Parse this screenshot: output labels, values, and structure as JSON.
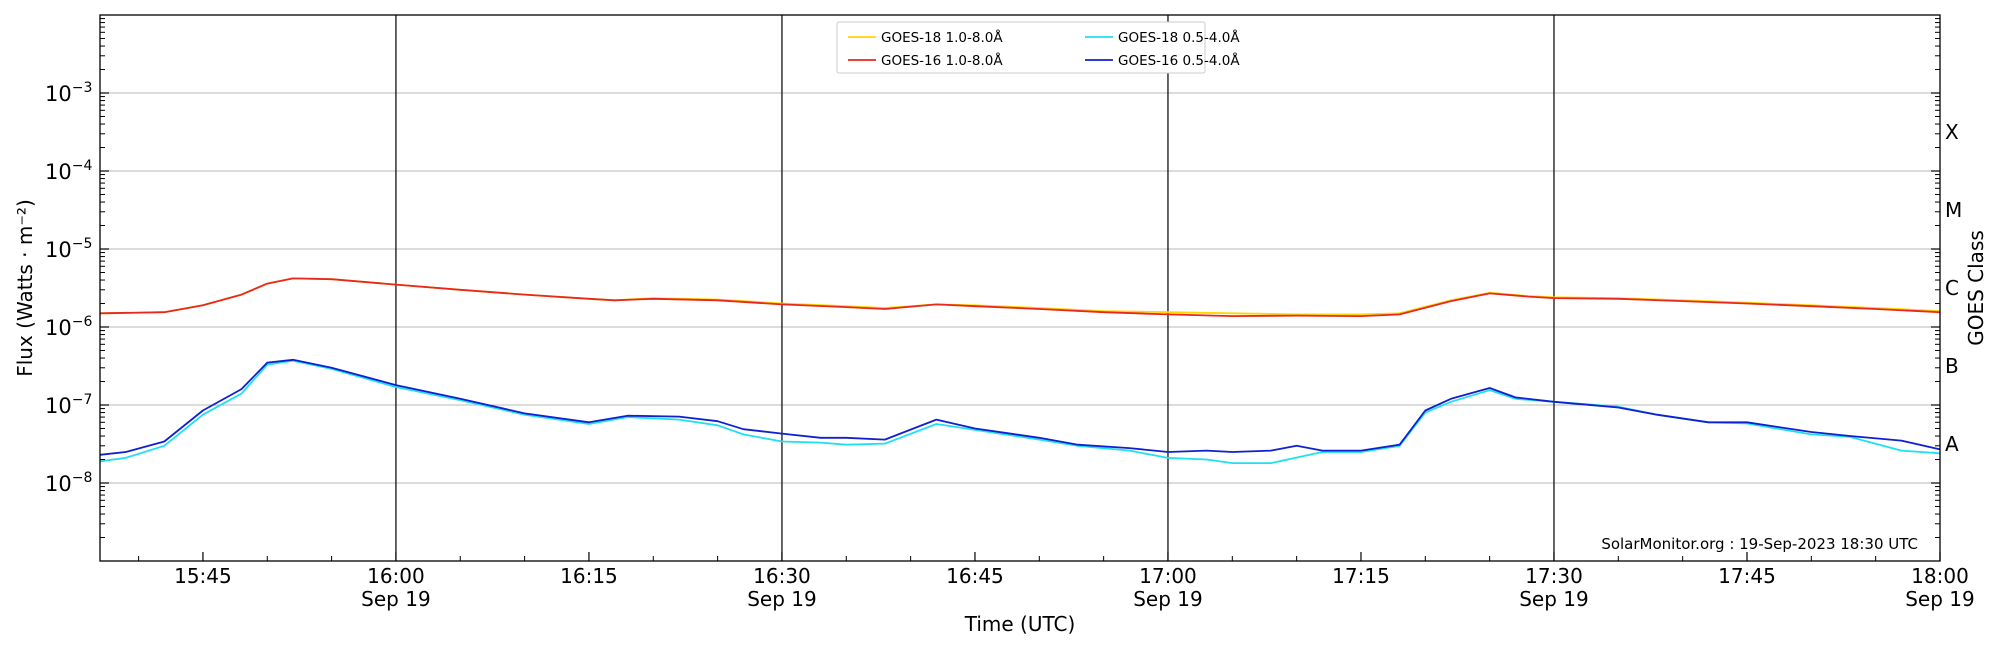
{
  "chart_data": {
    "type": "line",
    "title": "",
    "xlabel": "Time (UTC)",
    "ylabel": "Flux (Watts · m⁻²)",
    "right_label": "GOES Class",
    "annotation": "SolarMonitor.org : 19-Sep-2023 18:30 UTC",
    "x_range_minutes": [
      "15:37",
      "18:00"
    ],
    "y_scale": "log",
    "ylim": [
      1e-09,
      0.01
    ],
    "grid": "horizontal at decades",
    "legend_position": "top-center",
    "x_ticks": [
      {
        "t": "15:45",
        "label": "15:45",
        "sub": ""
      },
      {
        "t": "16:00",
        "label": "16:00",
        "sub": "Sep 19"
      },
      {
        "t": "16:15",
        "label": "16:15",
        "sub": ""
      },
      {
        "t": "16:30",
        "label": "16:30",
        "sub": "Sep 19"
      },
      {
        "t": "16:45",
        "label": "16:45",
        "sub": ""
      },
      {
        "t": "17:00",
        "label": "17:00",
        "sub": "Sep 19"
      },
      {
        "t": "17:15",
        "label": "17:15",
        "sub": ""
      },
      {
        "t": "17:30",
        "label": "17:30",
        "sub": "Sep 19"
      },
      {
        "t": "17:45",
        "label": "17:45",
        "sub": ""
      },
      {
        "t": "18:00",
        "label": "18:00",
        "sub": "Sep 19"
      }
    ],
    "vlines": [
      "16:00",
      "16:30",
      "17:00",
      "17:30"
    ],
    "y_ticks": [
      {
        "exp": -8,
        "label": "10",
        "sup": "−8"
      },
      {
        "exp": -7,
        "label": "10",
        "sup": "−7"
      },
      {
        "exp": -6,
        "label": "10",
        "sup": "−6"
      },
      {
        "exp": -5,
        "label": "10",
        "sup": "−5"
      },
      {
        "exp": -4,
        "label": "10",
        "sup": "−4"
      },
      {
        "exp": -3,
        "label": "10",
        "sup": "−3"
      }
    ],
    "goes_classes": [
      {
        "label": "A",
        "exp": -7.5
      },
      {
        "label": "B",
        "exp": -6.5
      },
      {
        "label": "C",
        "exp": -5.5
      },
      {
        "label": "M",
        "exp": -4.5
      },
      {
        "label": "X",
        "exp": -3.5
      }
    ],
    "series": [
      {
        "name": "GOES-18 1.0-8.0Å",
        "color": "#ffd700",
        "points": [
          [
            "15:37",
            1.5e-06
          ],
          [
            "15:42",
            1.55e-06
          ],
          [
            "15:45",
            1.9e-06
          ],
          [
            "15:48",
            2.6e-06
          ],
          [
            "15:50",
            3.6e-06
          ],
          [
            "15:52",
            4.2e-06
          ],
          [
            "15:55",
            4.1e-06
          ],
          [
            "16:00",
            3.5e-06
          ],
          [
            "16:05",
            3e-06
          ],
          [
            "16:10",
            2.6e-06
          ],
          [
            "16:15",
            2.3e-06
          ],
          [
            "16:17",
            2.2e-06
          ],
          [
            "16:20",
            2.35e-06
          ],
          [
            "16:25",
            2.25e-06
          ],
          [
            "16:30",
            2e-06
          ],
          [
            "16:35",
            1.85e-06
          ],
          [
            "16:38",
            1.75e-06
          ],
          [
            "16:42",
            1.95e-06
          ],
          [
            "16:45",
            1.9e-06
          ],
          [
            "16:50",
            1.75e-06
          ],
          [
            "16:55",
            1.6e-06
          ],
          [
            "17:00",
            1.55e-06
          ],
          [
            "17:05",
            1.5e-06
          ],
          [
            "17:10",
            1.45e-06
          ],
          [
            "17:15",
            1.45e-06
          ],
          [
            "17:18",
            1.5e-06
          ],
          [
            "17:22",
            2.2e-06
          ],
          [
            "17:25",
            2.75e-06
          ],
          [
            "17:28",
            2.5e-06
          ],
          [
            "17:30",
            2.4e-06
          ],
          [
            "17:35",
            2.35e-06
          ],
          [
            "17:40",
            2.2e-06
          ],
          [
            "17:45",
            2.05e-06
          ],
          [
            "17:50",
            1.9e-06
          ],
          [
            "17:55",
            1.75e-06
          ],
          [
            "18:00",
            1.6e-06
          ]
        ]
      },
      {
        "name": "GOES-16 1.0-8.0Å",
        "color": "#e8281c",
        "points": [
          [
            "15:37",
            1.5e-06
          ],
          [
            "15:42",
            1.55e-06
          ],
          [
            "15:45",
            1.9e-06
          ],
          [
            "15:48",
            2.6e-06
          ],
          [
            "15:50",
            3.6e-06
          ],
          [
            "15:52",
            4.2e-06
          ],
          [
            "15:55",
            4.1e-06
          ],
          [
            "16:00",
            3.5e-06
          ],
          [
            "16:05",
            3e-06
          ],
          [
            "16:10",
            2.6e-06
          ],
          [
            "16:15",
            2.3e-06
          ],
          [
            "16:17",
            2.2e-06
          ],
          [
            "16:20",
            2.3e-06
          ],
          [
            "16:25",
            2.2e-06
          ],
          [
            "16:30",
            1.95e-06
          ],
          [
            "16:35",
            1.8e-06
          ],
          [
            "16:38",
            1.7e-06
          ],
          [
            "16:42",
            1.95e-06
          ],
          [
            "16:45",
            1.85e-06
          ],
          [
            "16:50",
            1.7e-06
          ],
          [
            "16:55",
            1.55e-06
          ],
          [
            "17:00",
            1.45e-06
          ],
          [
            "17:05",
            1.38e-06
          ],
          [
            "17:10",
            1.4e-06
          ],
          [
            "17:15",
            1.38e-06
          ],
          [
            "17:18",
            1.45e-06
          ],
          [
            "17:22",
            2.15e-06
          ],
          [
            "17:25",
            2.7e-06
          ],
          [
            "17:28",
            2.45e-06
          ],
          [
            "17:30",
            2.35e-06
          ],
          [
            "17:35",
            2.3e-06
          ],
          [
            "17:40",
            2.15e-06
          ],
          [
            "17:45",
            2e-06
          ],
          [
            "17:50",
            1.85e-06
          ],
          [
            "17:55",
            1.7e-06
          ],
          [
            "18:00",
            1.55e-06
          ]
        ]
      },
      {
        "name": "GOES-18 0.5-4.0Å",
        "color": "#1fe0f0",
        "points": [
          [
            "15:37",
            1.9e-08
          ],
          [
            "15:39",
            2.1e-08
          ],
          [
            "15:42",
            3e-08
          ],
          [
            "15:45",
            7.5e-08
          ],
          [
            "15:48",
            1.4e-07
          ],
          [
            "15:50",
            3.3e-07
          ],
          [
            "15:52",
            3.7e-07
          ],
          [
            "15:55",
            2.9e-07
          ],
          [
            "16:00",
            1.7e-07
          ],
          [
            "16:05",
            1.15e-07
          ],
          [
            "16:10",
            7.5e-08
          ],
          [
            "16:15",
            5.7e-08
          ],
          [
            "16:18",
            7e-08
          ],
          [
            "16:22",
            6.5e-08
          ],
          [
            "16:25",
            5.5e-08
          ],
          [
            "16:27",
            4.2e-08
          ],
          [
            "16:30",
            3.4e-08
          ],
          [
            "16:33",
            3.3e-08
          ],
          [
            "16:35",
            3.1e-08
          ],
          [
            "16:38",
            3.2e-08
          ],
          [
            "16:42",
            5.7e-08
          ],
          [
            "16:45",
            4.8e-08
          ],
          [
            "16:50",
            3.6e-08
          ],
          [
            "16:53",
            3e-08
          ],
          [
            "16:57",
            2.6e-08
          ],
          [
            "17:00",
            2.1e-08
          ],
          [
            "17:03",
            2e-08
          ],
          [
            "17:05",
            1.8e-08
          ],
          [
            "17:08",
            1.8e-08
          ],
          [
            "17:12",
            2.5e-08
          ],
          [
            "17:15",
            2.5e-08
          ],
          [
            "17:18",
            3e-08
          ],
          [
            "17:20",
            8e-08
          ],
          [
            "17:22",
            1.1e-07
          ],
          [
            "17:25",
            1.55e-07
          ],
          [
            "17:27",
            1.2e-07
          ],
          [
            "17:30",
            1.1e-07
          ],
          [
            "17:35",
            9.5e-08
          ],
          [
            "17:38",
            7.5e-08
          ],
          [
            "17:42",
            6e-08
          ],
          [
            "17:45",
            5.8e-08
          ],
          [
            "17:50",
            4.2e-08
          ],
          [
            "17:53",
            3.9e-08
          ],
          [
            "17:57",
            2.6e-08
          ],
          [
            "18:00",
            2.4e-08
          ]
        ]
      },
      {
        "name": "GOES-16 0.5-4.0Å",
        "color": "#1020d0",
        "points": [
          [
            "15:37",
            2.3e-08
          ],
          [
            "15:39",
            2.5e-08
          ],
          [
            "15:42",
            3.4e-08
          ],
          [
            "15:45",
            8.5e-08
          ],
          [
            "15:48",
            1.6e-07
          ],
          [
            "15:50",
            3.5e-07
          ],
          [
            "15:52",
            3.8e-07
          ],
          [
            "15:55",
            3e-07
          ],
          [
            "16:00",
            1.8e-07
          ],
          [
            "16:05",
            1.2e-07
          ],
          [
            "16:10",
            7.8e-08
          ],
          [
            "16:15",
            6e-08
          ],
          [
            "16:18",
            7.3e-08
          ],
          [
            "16:22",
            7.1e-08
          ],
          [
            "16:25",
            6.2e-08
          ],
          [
            "16:27",
            4.9e-08
          ],
          [
            "16:30",
            4.3e-08
          ],
          [
            "16:33",
            3.8e-08
          ],
          [
            "16:35",
            3.8e-08
          ],
          [
            "16:38",
            3.6e-08
          ],
          [
            "16:42",
            6.5e-08
          ],
          [
            "16:45",
            5e-08
          ],
          [
            "16:50",
            3.8e-08
          ],
          [
            "16:53",
            3.1e-08
          ],
          [
            "16:57",
            2.8e-08
          ],
          [
            "17:00",
            2.5e-08
          ],
          [
            "17:03",
            2.6e-08
          ],
          [
            "17:05",
            2.5e-08
          ],
          [
            "17:08",
            2.6e-08
          ],
          [
            "17:10",
            3e-08
          ],
          [
            "17:12",
            2.6e-08
          ],
          [
            "17:15",
            2.6e-08
          ],
          [
            "17:18",
            3.1e-08
          ],
          [
            "17:20",
            8.5e-08
          ],
          [
            "17:22",
            1.2e-07
          ],
          [
            "17:25",
            1.65e-07
          ],
          [
            "17:27",
            1.25e-07
          ],
          [
            "17:30",
            1.1e-07
          ],
          [
            "17:35",
            9.3e-08
          ],
          [
            "17:38",
            7.5e-08
          ],
          [
            "17:42",
            6e-08
          ],
          [
            "17:45",
            6e-08
          ],
          [
            "17:50",
            4.5e-08
          ],
          [
            "17:53",
            4e-08
          ],
          [
            "17:57",
            3.5e-08
          ],
          [
            "18:00",
            2.7e-08
          ]
        ]
      }
    ]
  }
}
